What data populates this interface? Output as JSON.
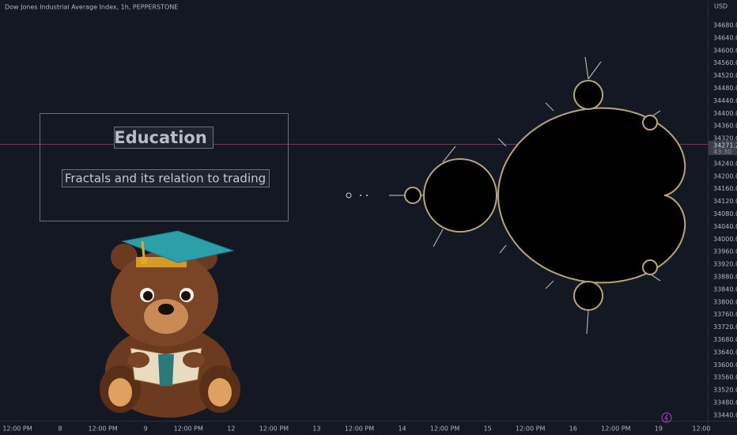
{
  "header": {
    "title": "Dow Jones Industrial Average Index, 1h, PEPPERSTONE"
  },
  "price_axis": {
    "currency": "USD",
    "labels": [
      "34680.0",
      "34640.0",
      "34600.0",
      "34560.0",
      "34520.0",
      "34480.0",
      "34440.0",
      "34400.0",
      "34360.0",
      "34320.0",
      "34240.0",
      "34200.0",
      "34160.0",
      "34120.0",
      "34080.0",
      "34040.0",
      "34000.0",
      "33960.0",
      "33920.0",
      "33880.0",
      "33840.0",
      "33800.0",
      "33760.0",
      "33720.0",
      "33680.0",
      "33640.0",
      "33600.0",
      "33560.0",
      "33520.0",
      "33480.0",
      "33440.0"
    ]
  },
  "price_label": {
    "price": "34271.2",
    "countdown": "43:30"
  },
  "time_axis": {
    "labels": [
      "12:00 PM",
      "8",
      "12:00 PM",
      "9",
      "12:00 PM",
      "12",
      "12:00 PM",
      "13",
      "12:00 PM",
      "14",
      "12:00 PM",
      "15",
      "12:00 PM",
      "16",
      "12:00 PM",
      "19",
      "12:00"
    ]
  },
  "text_box": {
    "title": "Education",
    "subtitle": "Fractals and its relation to trading"
  }
}
